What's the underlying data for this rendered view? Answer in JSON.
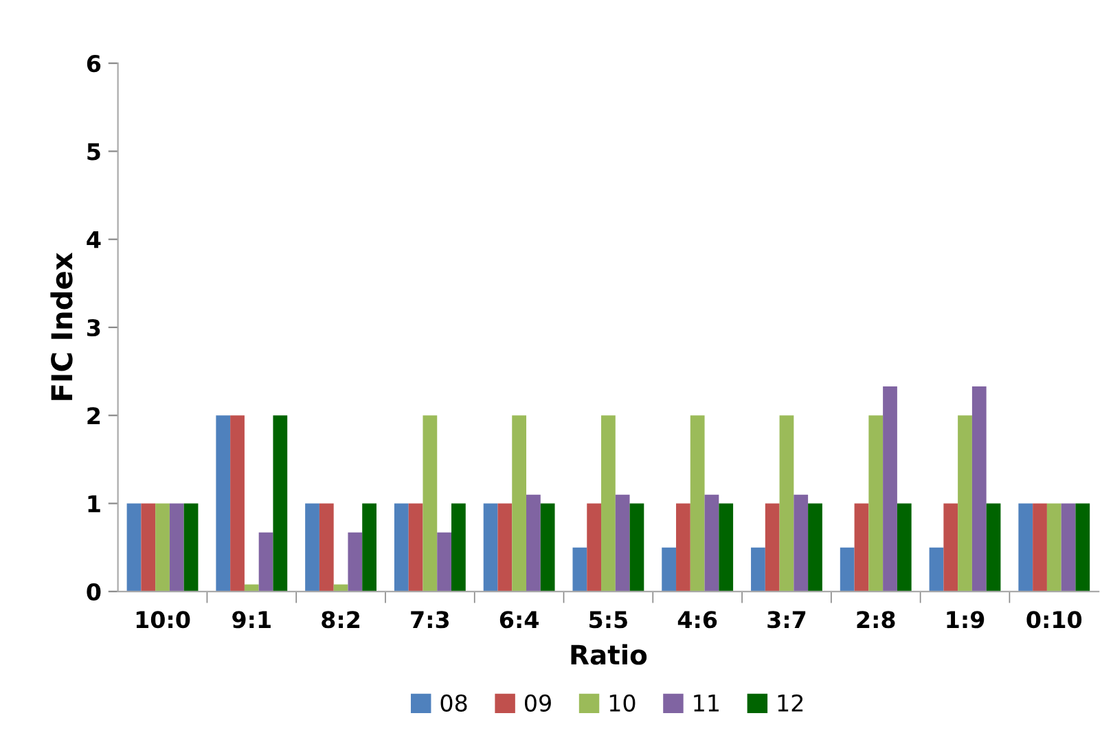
{
  "chart_data": {
    "type": "bar",
    "xlabel": "Ratio",
    "ylabel": "FIC Index",
    "categories": [
      "10:0",
      "9:1",
      "8:2",
      "7:3",
      "6:4",
      "5:5",
      "4:6",
      "3:7",
      "2:8",
      "1:9",
      "0:10"
    ],
    "series": [
      {
        "name": "08",
        "color": "#4f81bd",
        "values": [
          1,
          2,
          1,
          1,
          1,
          0.5,
          0.5,
          0.5,
          0.5,
          0.5,
          1
        ]
      },
      {
        "name": "09",
        "color": "#c0504d",
        "values": [
          1,
          2,
          1,
          1,
          1,
          1,
          1,
          1,
          1,
          1,
          1
        ]
      },
      {
        "name": "10",
        "color": "#9bbb59",
        "values": [
          1,
          0.08,
          0.08,
          2,
          2,
          2,
          2,
          2,
          2,
          2,
          1
        ]
      },
      {
        "name": "11",
        "color": "#8064a2",
        "values": [
          1,
          0.67,
          0.67,
          0.67,
          1.1,
          1.1,
          1.1,
          1.1,
          2.33,
          2.33,
          1
        ]
      },
      {
        "name": "12",
        "color": "#006400",
        "values": [
          1,
          2,
          1,
          1,
          1,
          1,
          1,
          1,
          1,
          1,
          1
        ]
      }
    ],
    "ylim": [
      0,
      6
    ],
    "yticks": [
      0,
      1,
      2,
      3,
      4,
      5,
      6
    ],
    "grid": false,
    "legend": "bottom"
  }
}
